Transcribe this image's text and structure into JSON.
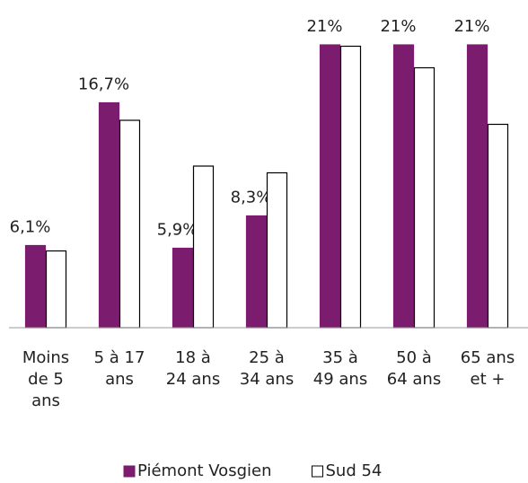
{
  "chart_data": {
    "type": "bar",
    "categories": [
      "Moins de 5 ans",
      "5 à 17 ans",
      "18 à 24 ans",
      "25 à 34 ans",
      "35 à 49 ans",
      "50 à 64 ans",
      "65 ans et +"
    ],
    "series": [
      {
        "name": "Piémont Vosgien",
        "color": "#7b1c6f",
        "values": [
          6.1,
          16.7,
          5.9,
          8.3,
          21,
          21,
          21
        ],
        "value_labels": [
          "6,1%",
          "16,7%",
          "5,9%",
          "8,3%",
          "21%",
          "21%",
          "21%"
        ]
      },
      {
        "name": "Sud 54",
        "color": "#ffffff",
        "values": [
          5.7,
          15.4,
          12.0,
          11.5,
          20.9,
          19.3,
          15.1
        ]
      }
    ],
    "ylim": [
      0,
      21
    ],
    "legend": "bottom"
  }
}
